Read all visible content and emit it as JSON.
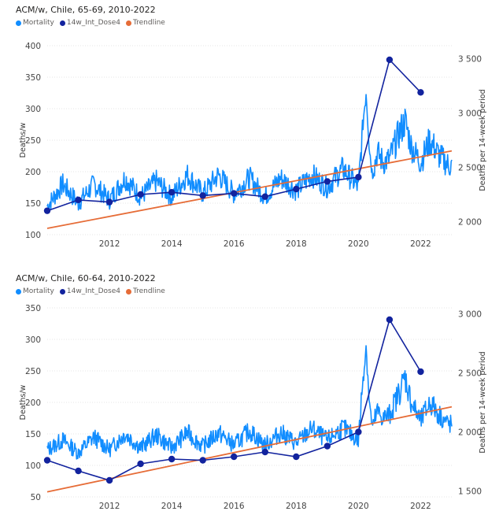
{
  "colors": {
    "mortality": "#118DFF",
    "dose": "#12239E",
    "trend": "#E66C37",
    "grid": "#e6e6e6"
  },
  "chart_data": [
    {
      "type": "line",
      "title": "ACM/w, Chile, 65-69, 2010-2022",
      "legend": [
        "Mortality",
        "14w_Int_Dose4",
        "Trendline"
      ],
      "legend_position": "top-left",
      "ylabel": "Deaths/w",
      "ylabel_right": "Deaths per 14-week period",
      "xlim": [
        2010,
        2023
      ],
      "ylim": [
        100,
        400
      ],
      "yticks": [
        "100",
        "150",
        "200",
        "250",
        "300",
        "350",
        "400"
      ],
      "ylim_right": [
        1880,
        3620
      ],
      "yticks_right": [
        {
          "v": 2000,
          "label": "2 000"
        },
        {
          "v": 2500,
          "label": "2 500"
        },
        {
          "v": 3000,
          "label": "3 000"
        },
        {
          "v": 3500,
          "label": "3 500"
        }
      ],
      "xticks": [
        "2012",
        "2014",
        "2016",
        "2018",
        "2020",
        "2022"
      ],
      "grid": true,
      "mortality_profile": {
        "x": [
          2010.0,
          2010.5,
          2011.0,
          2011.5,
          2012.0,
          2012.5,
          2013.0,
          2013.5,
          2014.0,
          2014.5,
          2015.0,
          2015.5,
          2016.0,
          2016.5,
          2017.0,
          2017.5,
          2018.0,
          2018.5,
          2019.0,
          2019.5,
          2020.0,
          2020.15,
          2020.25,
          2020.35,
          2020.45,
          2020.6,
          2020.8,
          2021.0,
          2021.3,
          2021.5,
          2021.7,
          2022.0,
          2022.3,
          2022.6,
          2022.9
        ],
        "y": [
          145,
          180,
          150,
          180,
          155,
          190,
          160,
          185,
          160,
          195,
          165,
          195,
          165,
          190,
          160,
          190,
          170,
          195,
          175,
          205,
          175,
          280,
          330,
          240,
          195,
          230,
          215,
          220,
          260,
          280,
          240,
          215,
          250,
          225,
          210
        ]
      },
      "dose_series": {
        "name": "14w_Int_Dose4",
        "x": [
          2010.0,
          2011.0,
          2012.0,
          2013.0,
          2014.0,
          2015.0,
          2016.0,
          2017.0,
          2018.0,
          2019.0,
          2020.0,
          2021.0,
          2022.0
        ],
        "y": [
          2100,
          2200,
          2180,
          2250,
          2270,
          2240,
          2260,
          2230,
          2300,
          2370,
          2410,
          3490,
          3190
        ]
      },
      "trend_series": {
        "name": "Trendline",
        "x": [
          2010.0,
          2023.0
        ],
        "y": [
          110,
          233
        ]
      }
    },
    {
      "type": "line",
      "title": "ACM/w, Chile, 60-64, 2010-2022",
      "legend": [
        "Mortality",
        "14w_Int_Dose4",
        "Trendline"
      ],
      "legend_position": "top-left",
      "ylabel": "Deaths/w",
      "ylabel_right": "Deaths per 14-week period",
      "xlim": [
        2010,
        2023
      ],
      "ylim": [
        50,
        350
      ],
      "yticks": [
        "50",
        "100",
        "150",
        "200",
        "250",
        "300",
        "350"
      ],
      "ylim_right": [
        1450,
        3050
      ],
      "yticks_right": [
        {
          "v": 1500,
          "label": "1 500"
        },
        {
          "v": 2000,
          "label": "2 000"
        },
        {
          "v": 2500,
          "label": "2 500"
        },
        {
          "v": 3000,
          "label": "3 000"
        }
      ],
      "xticks": [
        "2012",
        "2014",
        "2016",
        "2018",
        "2020",
        "2022"
      ],
      "grid": true,
      "mortality_profile": {
        "x": [
          2010.0,
          2010.5,
          2011.0,
          2011.5,
          2012.0,
          2012.5,
          2013.0,
          2013.5,
          2014.0,
          2014.5,
          2015.0,
          2015.5,
          2016.0,
          2016.5,
          2017.0,
          2017.5,
          2018.0,
          2018.5,
          2019.0,
          2019.5,
          2020.0,
          2020.15,
          2020.25,
          2020.35,
          2020.45,
          2020.6,
          2020.8,
          2021.0,
          2021.3,
          2021.5,
          2021.7,
          2022.0,
          2022.3,
          2022.6,
          2022.9
        ],
        "y": [
          125,
          140,
          120,
          145,
          125,
          150,
          128,
          148,
          128,
          152,
          130,
          152,
          132,
          155,
          132,
          152,
          135,
          158,
          140,
          160,
          140,
          240,
          290,
          200,
          160,
          185,
          175,
          180,
          215,
          240,
          200,
          170,
          200,
          180,
          165
        ]
      },
      "dose_series": {
        "name": "14w_Int_Dose4",
        "x": [
          2010.0,
          2011.0,
          2012.0,
          2013.0,
          2014.0,
          2015.0,
          2016.0,
          2017.0,
          2018.0,
          2019.0,
          2020.0,
          2021.0,
          2022.0
        ],
        "y": [
          1760,
          1670,
          1590,
          1730,
          1770,
          1760,
          1790,
          1830,
          1790,
          1880,
          2000,
          2950,
          2510
        ]
      },
      "trend_series": {
        "name": "Trendline",
        "x": [
          2010.0,
          2023.0
        ],
        "y": [
          58,
          193
        ]
      }
    }
  ]
}
